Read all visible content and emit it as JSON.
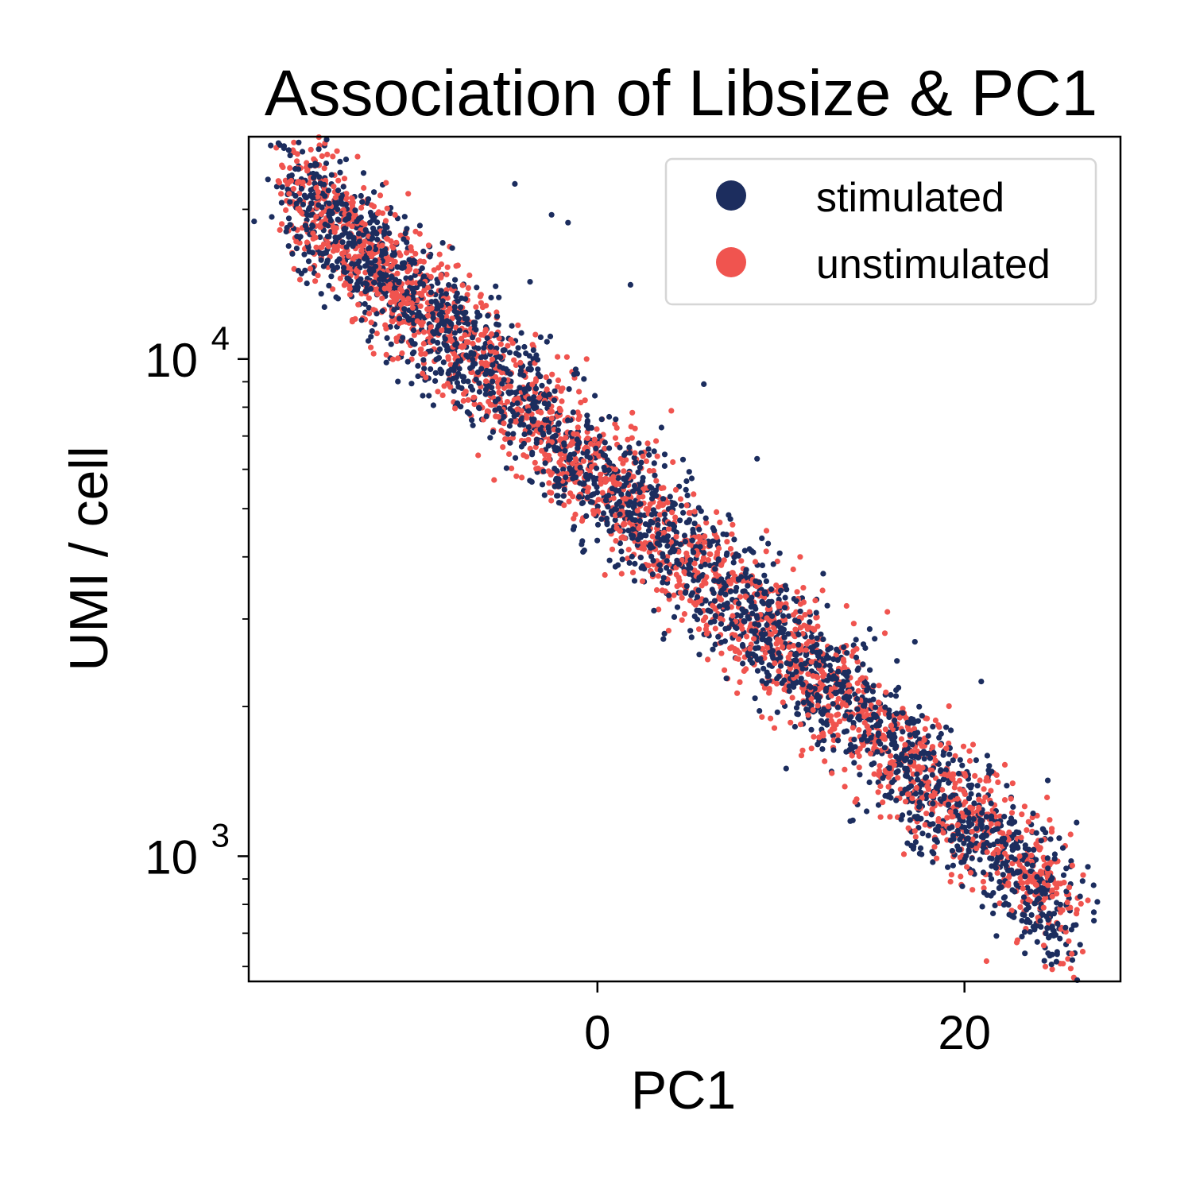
{
  "chart_data": {
    "type": "scatter",
    "title": "Association of Libsize & PC1",
    "xlabel": "PC1",
    "ylabel": "UMI / cell",
    "xlim": [
      -19,
      28.5
    ],
    "ylim": [
      560,
      28000
    ],
    "yscale": "log",
    "xticks": [
      {
        "value": 0,
        "label": "0"
      },
      {
        "value": 20,
        "label": "20"
      }
    ],
    "yticks": [
      {
        "value": 1000,
        "base": "10",
        "exp": "3"
      },
      {
        "value": 10000,
        "base": "10",
        "exp": "4"
      }
    ],
    "grid": false,
    "legend_position": "top-right",
    "trend": {
      "x_start": -16.5,
      "x_end": 25.5,
      "y_start": 22000,
      "y_end": 780,
      "noise_log10": 0.07
    },
    "series": [
      {
        "name": "stimulated",
        "color": "#1c2d5e",
        "n_points": 2600,
        "seed": 17,
        "annotated_points": [
          {
            "x": -4.5,
            "y": 22500
          },
          {
            "x": -2.5,
            "y": 19500
          },
          {
            "x": -1.6,
            "y": 18800
          },
          {
            "x": 1.8,
            "y": 14100
          },
          {
            "x": 5.8,
            "y": 8900
          },
          {
            "x": 8.7,
            "y": 6300
          },
          {
            "x": 12.3,
            "y": 3700
          },
          {
            "x": 17.3,
            "y": 2700
          },
          {
            "x": 21.2,
            "y": 1200
          },
          {
            "x": 26.3,
            "y": 830
          }
        ]
      },
      {
        "name": "unstimulated",
        "color": "#f0544f",
        "n_points": 2300,
        "seed": 42,
        "annotated_points": [
          {
            "x": -16.8,
            "y": 21500
          },
          {
            "x": -11.5,
            "y": 10200
          },
          {
            "x": -6.5,
            "y": 6400
          },
          {
            "x": 1.9,
            "y": 7800
          },
          {
            "x": 15.8,
            "y": 3100
          },
          {
            "x": 19.5,
            "y": 1400
          },
          {
            "x": 23.0,
            "y": 1000
          },
          {
            "x": 21.2,
            "y": 615
          }
        ]
      }
    ]
  }
}
